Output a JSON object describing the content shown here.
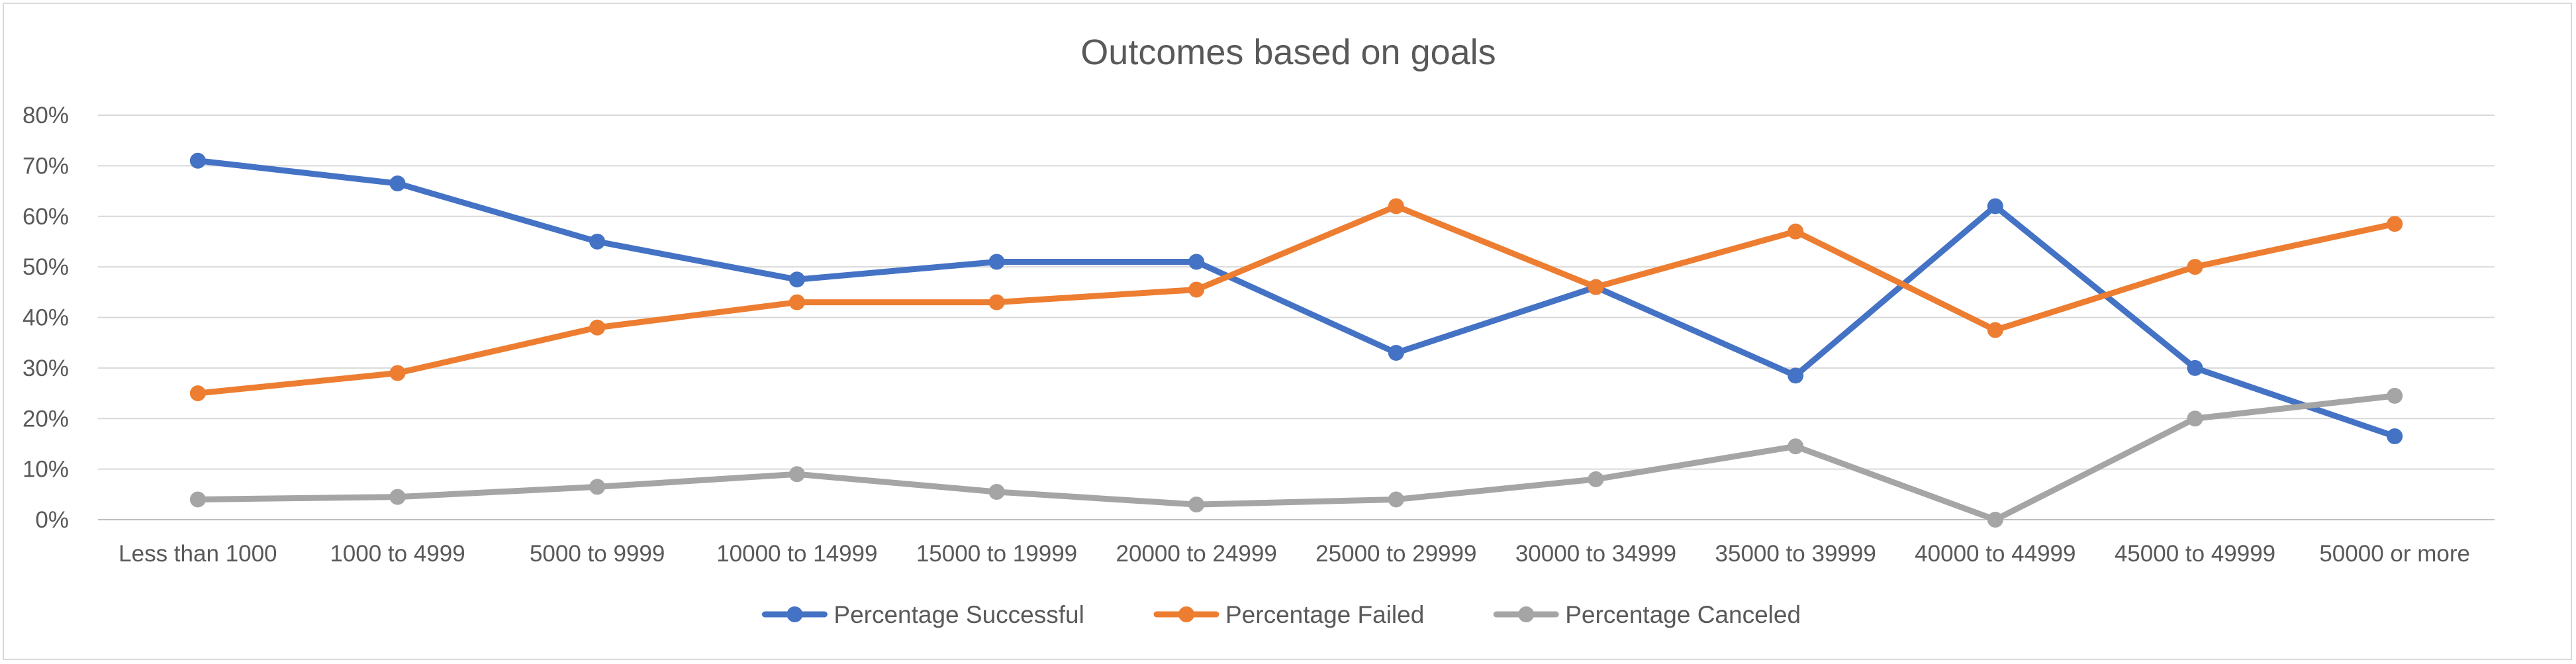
{
  "chart_data": {
    "type": "line",
    "title": "Outcomes based on goals",
    "xlabel": "",
    "ylabel": "",
    "categories": [
      "Less than 1000",
      "1000 to 4999",
      "5000 to 9999",
      "10000 to 14999",
      "15000 to 19999",
      "20000 to 24999",
      "25000 to 29999",
      "30000 to 34999",
      "35000 to 39999",
      "40000 to 44999",
      "45000 to 49999",
      "50000 or more"
    ],
    "y_ticks": [
      "0%",
      "10%",
      "20%",
      "30%",
      "40%",
      "50%",
      "60%",
      "70%",
      "80%"
    ],
    "ylim": [
      0,
      0.8
    ],
    "grid": true,
    "legend_position": "bottom",
    "series": [
      {
        "name": "Percentage Successful",
        "color": "#4472c4",
        "values": [
          0.71,
          0.665,
          0.55,
          0.475,
          0.51,
          0.51,
          0.33,
          0.46,
          0.285,
          0.62,
          0.3,
          0.165
        ]
      },
      {
        "name": "Percentage Failed",
        "color": "#ed7d31",
        "values": [
          0.25,
          0.29,
          0.38,
          0.43,
          0.43,
          0.455,
          0.62,
          0.46,
          0.57,
          0.375,
          0.5,
          0.585
        ]
      },
      {
        "name": "Percentage Canceled",
        "color": "#a5a5a5",
        "values": [
          0.04,
          0.045,
          0.065,
          0.09,
          0.055,
          0.03,
          0.04,
          0.08,
          0.145,
          0.0,
          0.2,
          0.245
        ]
      }
    ]
  }
}
